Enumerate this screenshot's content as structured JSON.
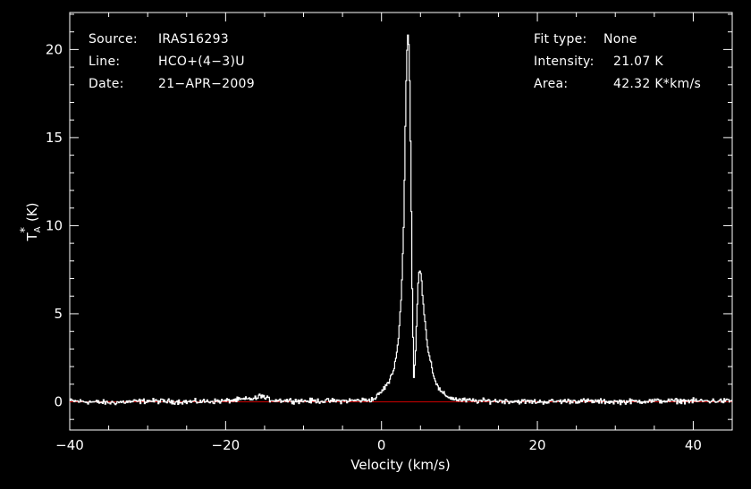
{
  "header": {
    "source_label": "Source:",
    "source_value": "IRAS16293",
    "line_label": "Line:",
    "line_value": "HCO+(4−3)U",
    "date_label": "Date:",
    "date_value": "21−APR−2009",
    "fit_label": "Fit type:",
    "fit_value": "None",
    "intensity_label": "Intensity:",
    "intensity_value": "21.07 K",
    "area_label": "Area:",
    "area_value": "42.32 K*km/s"
  },
  "colors": {
    "background": "#000000",
    "axes": "#ffffff",
    "spectrum": "#ffffff",
    "baseline": "#cc0000"
  },
  "chart_data": {
    "type": "line",
    "xlabel": "Velocity (km/s)",
    "ylabel": "T*A (K)",
    "ylabel_main": "T",
    "ylabel_sub": "A",
    "ylabel_sup": "*",
    "ylabel_unit": "(K)",
    "xlim": [
      -40,
      45
    ],
    "ylim": [
      -1.6,
      22.1
    ],
    "x_ticks": [
      -40,
      -20,
      0,
      20,
      40
    ],
    "x_tick_labels": [
      "−40",
      "−20",
      "0",
      "20",
      "40"
    ],
    "y_ticks": [
      0,
      5,
      10,
      15,
      20
    ],
    "y_tick_labels": [
      "0",
      "5",
      "10",
      "15",
      "20"
    ],
    "grid": false,
    "baseline": 0,
    "series": [
      {
        "x": [
          -40,
          -35,
          -30,
          -25,
          -20,
          -16,
          -15.5,
          -15,
          -14,
          -10,
          -5,
          -2,
          -1,
          0,
          0.5,
          1,
          1.5,
          2,
          2.5,
          2.8,
          3.1,
          3.3,
          3.5,
          3.7,
          3.9,
          4.1,
          4.3,
          4.5,
          4.7,
          4.9,
          5.1,
          5.4,
          5.7,
          6.0,
          6.3,
          6.6,
          7.0,
          7.5,
          8,
          8.5,
          9,
          10,
          12,
          15,
          20,
          25,
          30,
          35,
          40,
          45
        ],
        "y": [
          0.05,
          -0.05,
          0.05,
          0,
          0.05,
          0.2,
          0.4,
          0.2,
          0.1,
          0.05,
          0.05,
          0.1,
          0.15,
          0.6,
          0.9,
          1.2,
          1.8,
          3.0,
          6.0,
          10.0,
          18.0,
          21.07,
          20.0,
          14.0,
          6.0,
          1.3,
          2.5,
          5.0,
          7.2,
          7.5,
          6.8,
          5.2,
          3.8,
          2.8,
          2.2,
          1.6,
          1.0,
          0.6,
          0.4,
          0.3,
          0.2,
          0.1,
          0.05,
          0.05,
          0,
          0.05,
          0,
          0.05,
          0.05,
          0.05
        ]
      }
    ]
  }
}
